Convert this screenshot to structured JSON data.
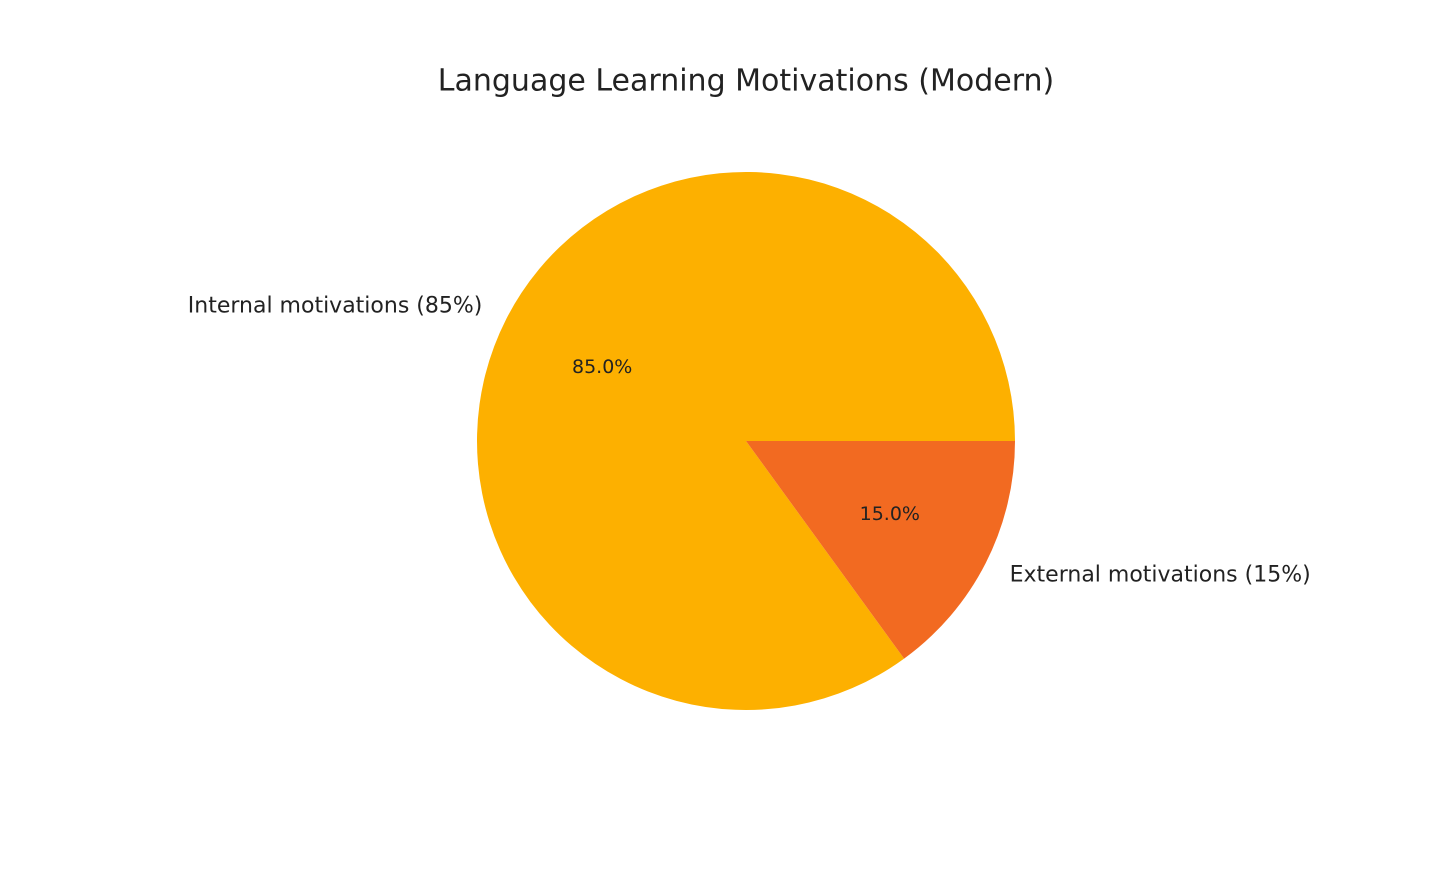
{
  "chart_data": {
    "type": "pie",
    "title": "Language Learning Motivations (Modern)",
    "categories": [
      "Internal motivations (85%)",
      "External motivations (15%)"
    ],
    "values": [
      85,
      15
    ],
    "value_labels": [
      "85.0%",
      "15.0%"
    ],
    "colors": [
      "#FDB000",
      "#F26A21"
    ]
  }
}
